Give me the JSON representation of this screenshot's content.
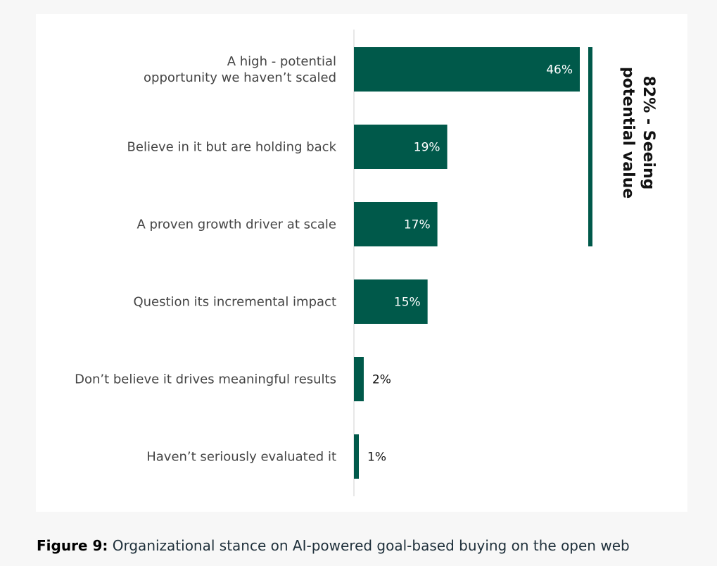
{
  "caption": {
    "prefix": "Figure 9:",
    "text": " Organizational stance on AI-powered goal-based buying on the open web"
  },
  "colors": {
    "bar": "#00594a",
    "bar_label_inside": "#ffffff",
    "bar_label_outside": "#111111",
    "axis": "#cfcfcf"
  },
  "chart_data": {
    "type": "bar",
    "orientation": "horizontal",
    "categories": [
      [
        "A high - potential",
        "opportunity we haven’t scaled"
      ],
      [
        "Believe in it but are holding back"
      ],
      [
        "A proven growth driver at scale"
      ],
      [
        "Question its incremental impact"
      ],
      [
        "Don’t believe it drives meaningful results"
      ],
      [
        "Haven’t seriously evaluated it"
      ]
    ],
    "values": [
      46,
      19,
      17,
      15,
      2,
      1
    ],
    "value_labels": [
      "46%",
      "19%",
      "17%",
      "15%",
      "2%",
      "1%"
    ],
    "xlim": [
      0,
      46
    ],
    "title": "",
    "xlabel": "",
    "ylabel": "",
    "grid": false,
    "annotation": {
      "text": [
        "82% - Seeing",
        "potential value"
      ],
      "spans_categories": [
        0,
        2
      ]
    }
  }
}
